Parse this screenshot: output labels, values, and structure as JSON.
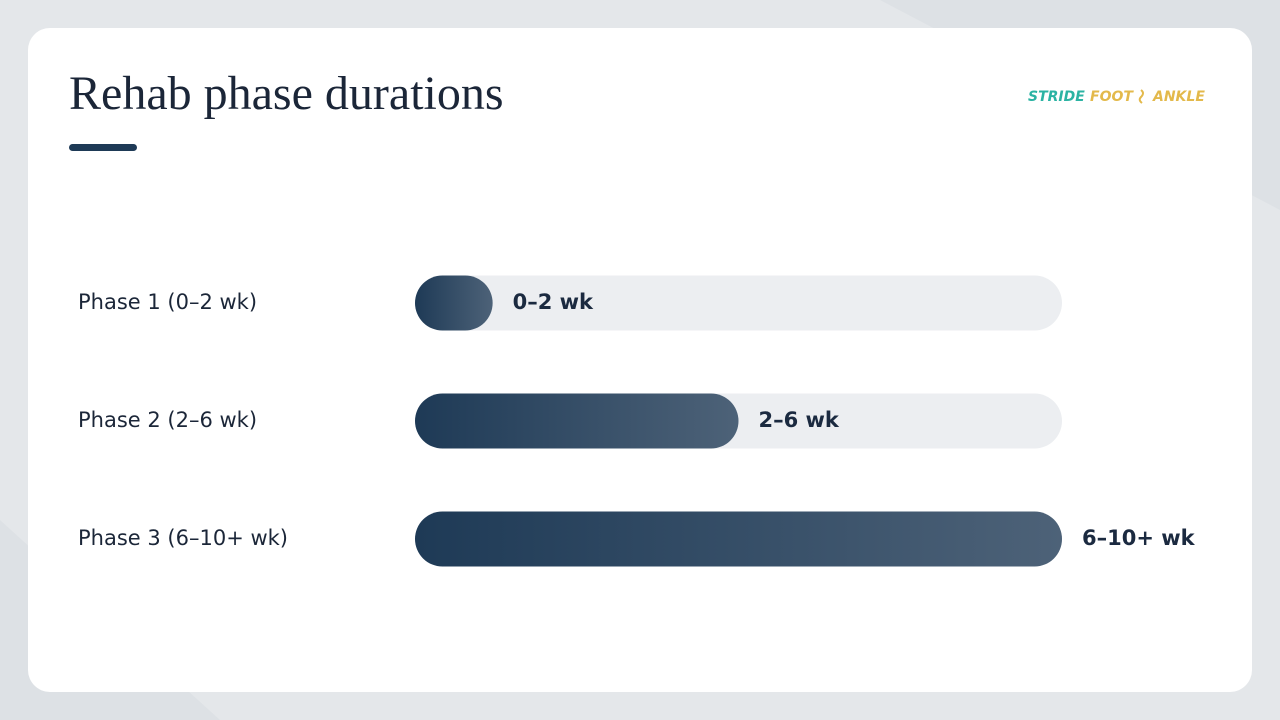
{
  "chart_data": {
    "type": "hbar",
    "title": "Rehab phase durations",
    "logo": [
      "STRIDE",
      "FOOT",
      "ANKLE"
    ],
    "categories": [
      "Phase 1 (0–2 wk)",
      "Phase 2 (2–6 wk)",
      "Phase 3 (6–10+ wk)"
    ],
    "values": [
      12,
      50,
      100
    ],
    "bar_labels": [
      "0–2 wk",
      "2–6 wk",
      "6–10+ wk"
    ],
    "xlim": [
      0,
      100
    ],
    "colors": [
      "#1e3a56",
      "#4d6278"
    ],
    "track_color": "#eceef1"
  }
}
